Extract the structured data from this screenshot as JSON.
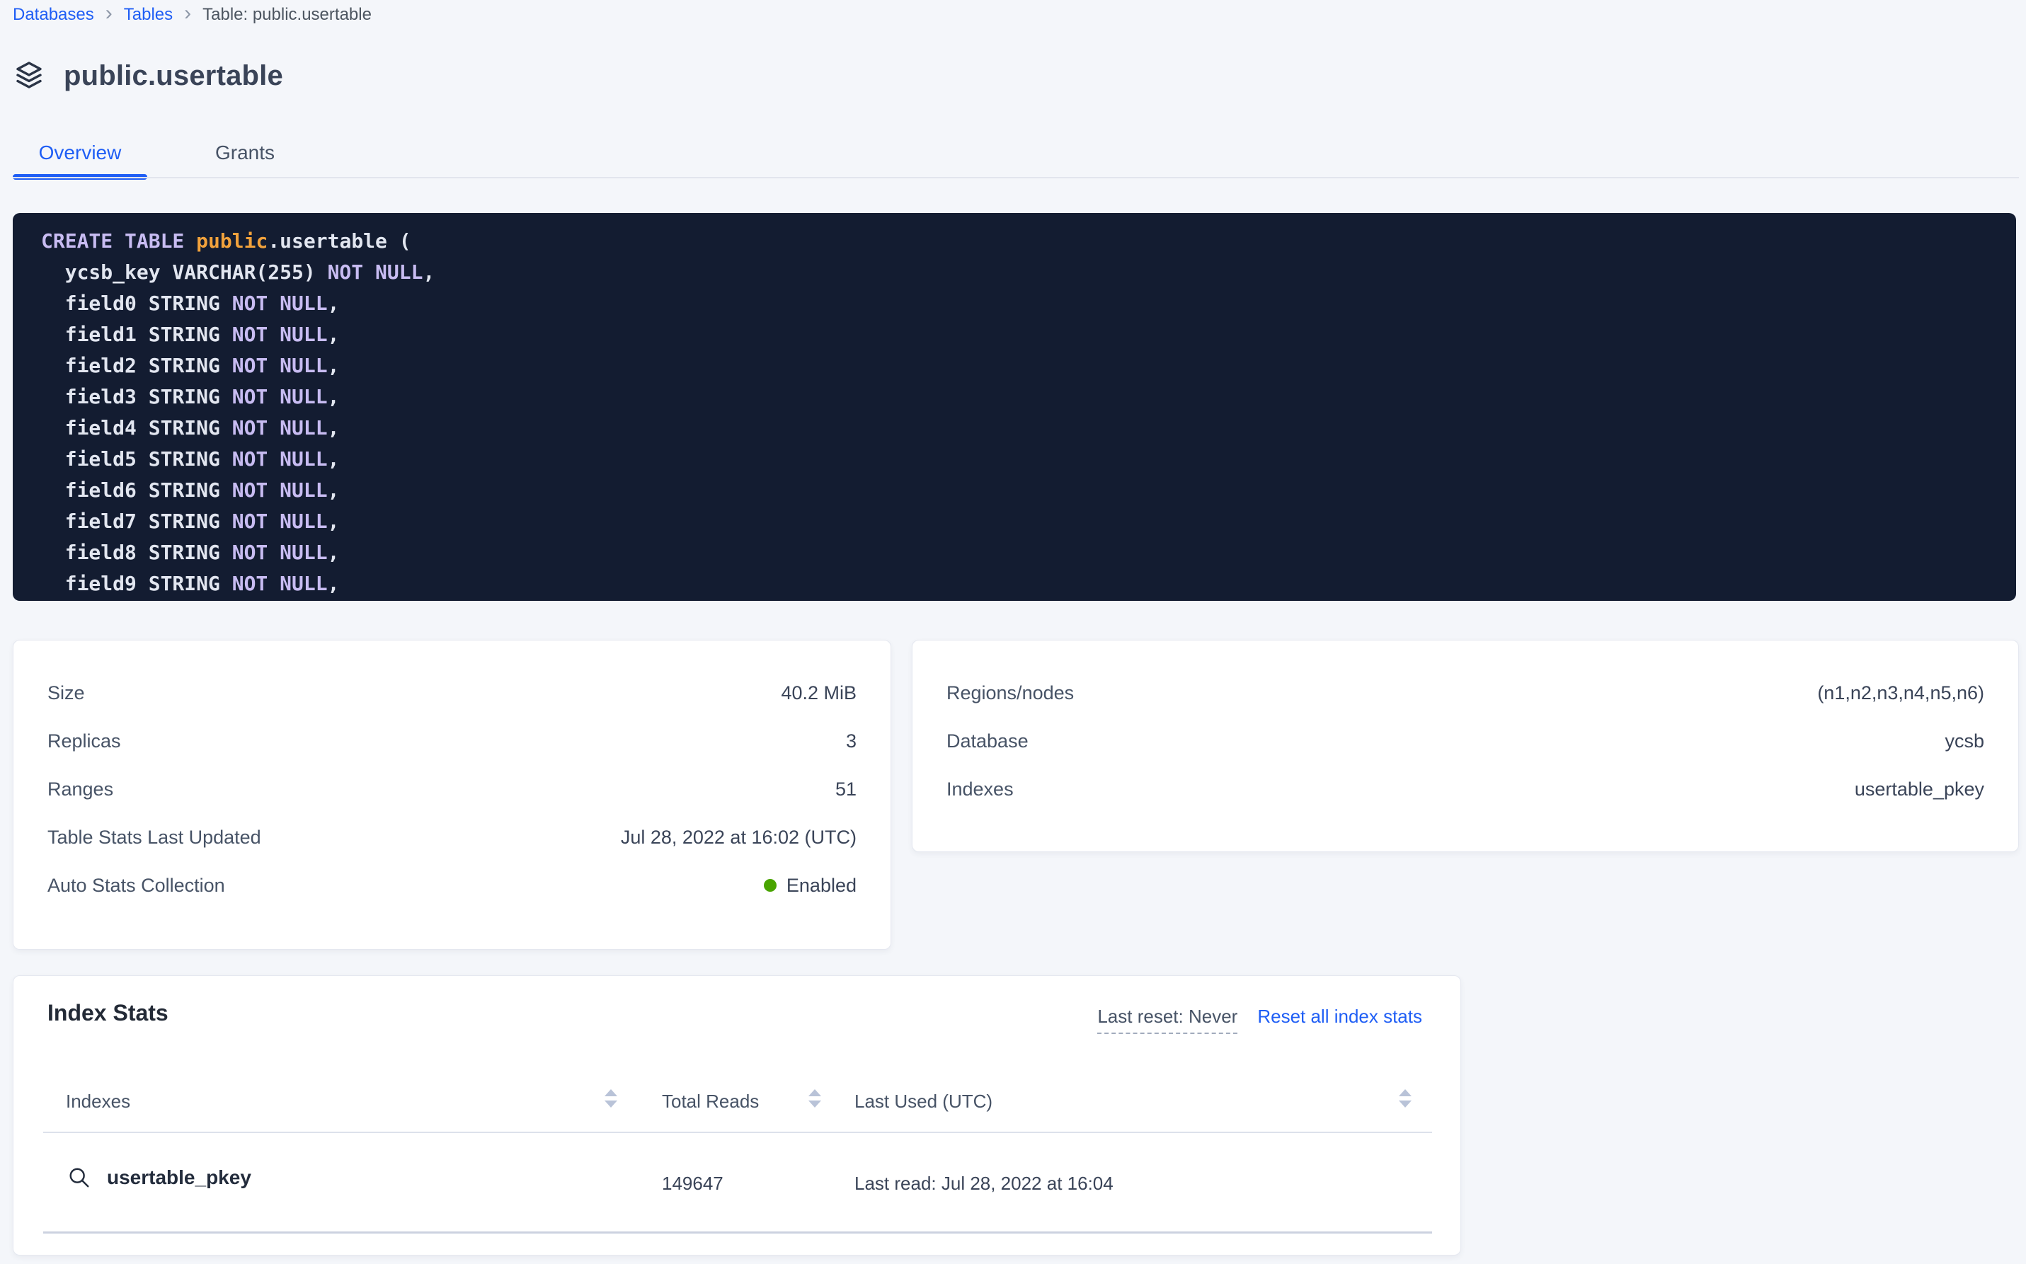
{
  "colors": {
    "accent_blue": "#1f5ef5",
    "status_green": "#49a400",
    "code_background": "#131c31",
    "code_keyword_lavender": "#c8bcf2",
    "code_schema_orange": "#f2a23c",
    "code_text": "#e2e6f0"
  },
  "breadcrumb": {
    "separator": "›",
    "items": [
      {
        "label": "Databases"
      },
      {
        "label": "Tables"
      }
    ],
    "current": "Table: public.usertable"
  },
  "header": {
    "title": "public.usertable"
  },
  "tabs": [
    {
      "label": "Overview",
      "active": true
    },
    {
      "label": "Grants",
      "active": false
    }
  ],
  "sql": {
    "lines": [
      [
        [
          "kw",
          "CREATE TABLE "
        ],
        [
          "schema",
          "public"
        ],
        [
          "pl",
          ".usertable ("
        ]
      ],
      [
        [
          "pl",
          "  ycsb_key VARCHAR(255) "
        ],
        [
          "kw",
          "NOT NULL"
        ],
        [
          "pl",
          ","
        ]
      ],
      [
        [
          "pl",
          "  field0 STRING "
        ],
        [
          "kw",
          "NOT NULL"
        ],
        [
          "pl",
          ","
        ]
      ],
      [
        [
          "pl",
          "  field1 STRING "
        ],
        [
          "kw",
          "NOT NULL"
        ],
        [
          "pl",
          ","
        ]
      ],
      [
        [
          "pl",
          "  field2 STRING "
        ],
        [
          "kw",
          "NOT NULL"
        ],
        [
          "pl",
          ","
        ]
      ],
      [
        [
          "pl",
          "  field3 STRING "
        ],
        [
          "kw",
          "NOT NULL"
        ],
        [
          "pl",
          ","
        ]
      ],
      [
        [
          "pl",
          "  field4 STRING "
        ],
        [
          "kw",
          "NOT NULL"
        ],
        [
          "pl",
          ","
        ]
      ],
      [
        [
          "pl",
          "  field5 STRING "
        ],
        [
          "kw",
          "NOT NULL"
        ],
        [
          "pl",
          ","
        ]
      ],
      [
        [
          "pl",
          "  field6 STRING "
        ],
        [
          "kw",
          "NOT NULL"
        ],
        [
          "pl",
          ","
        ]
      ],
      [
        [
          "pl",
          "  field7 STRING "
        ],
        [
          "kw",
          "NOT NULL"
        ],
        [
          "pl",
          ","
        ]
      ],
      [
        [
          "pl",
          "  field8 STRING "
        ],
        [
          "kw",
          "NOT NULL"
        ],
        [
          "pl",
          ","
        ]
      ],
      [
        [
          "pl",
          "  field9 STRING "
        ],
        [
          "kw",
          "NOT NULL"
        ],
        [
          "pl",
          ","
        ]
      ]
    ]
  },
  "details_left": {
    "rows": [
      {
        "label": "Size",
        "value": "40.2 MiB"
      },
      {
        "label": "Replicas",
        "value": "3"
      },
      {
        "label": "Ranges",
        "value": "51"
      },
      {
        "label": "Table Stats Last Updated",
        "value": "Jul 28, 2022 at 16:02 (UTC)"
      },
      {
        "label": "Auto Stats Collection",
        "value": "Enabled",
        "status": "enabled"
      }
    ]
  },
  "details_right": {
    "rows": [
      {
        "label": "Regions/nodes",
        "value": "(n1,n2,n3,n4,n5,n6)"
      },
      {
        "label": "Database",
        "value": "ycsb"
      },
      {
        "label": "Indexes",
        "value": "usertable_pkey"
      }
    ]
  },
  "index_stats": {
    "title": "Index Stats",
    "last_reset": "Last reset: Never",
    "reset_link": "Reset all index stats",
    "columns": [
      {
        "label": "Indexes"
      },
      {
        "label": "Total Reads"
      },
      {
        "label": "Last Used (UTC)"
      }
    ],
    "rows": [
      {
        "name": "usertable_pkey",
        "total_reads": "149647",
        "last_used": "Last read: Jul 28, 2022 at 16:04"
      }
    ]
  }
}
